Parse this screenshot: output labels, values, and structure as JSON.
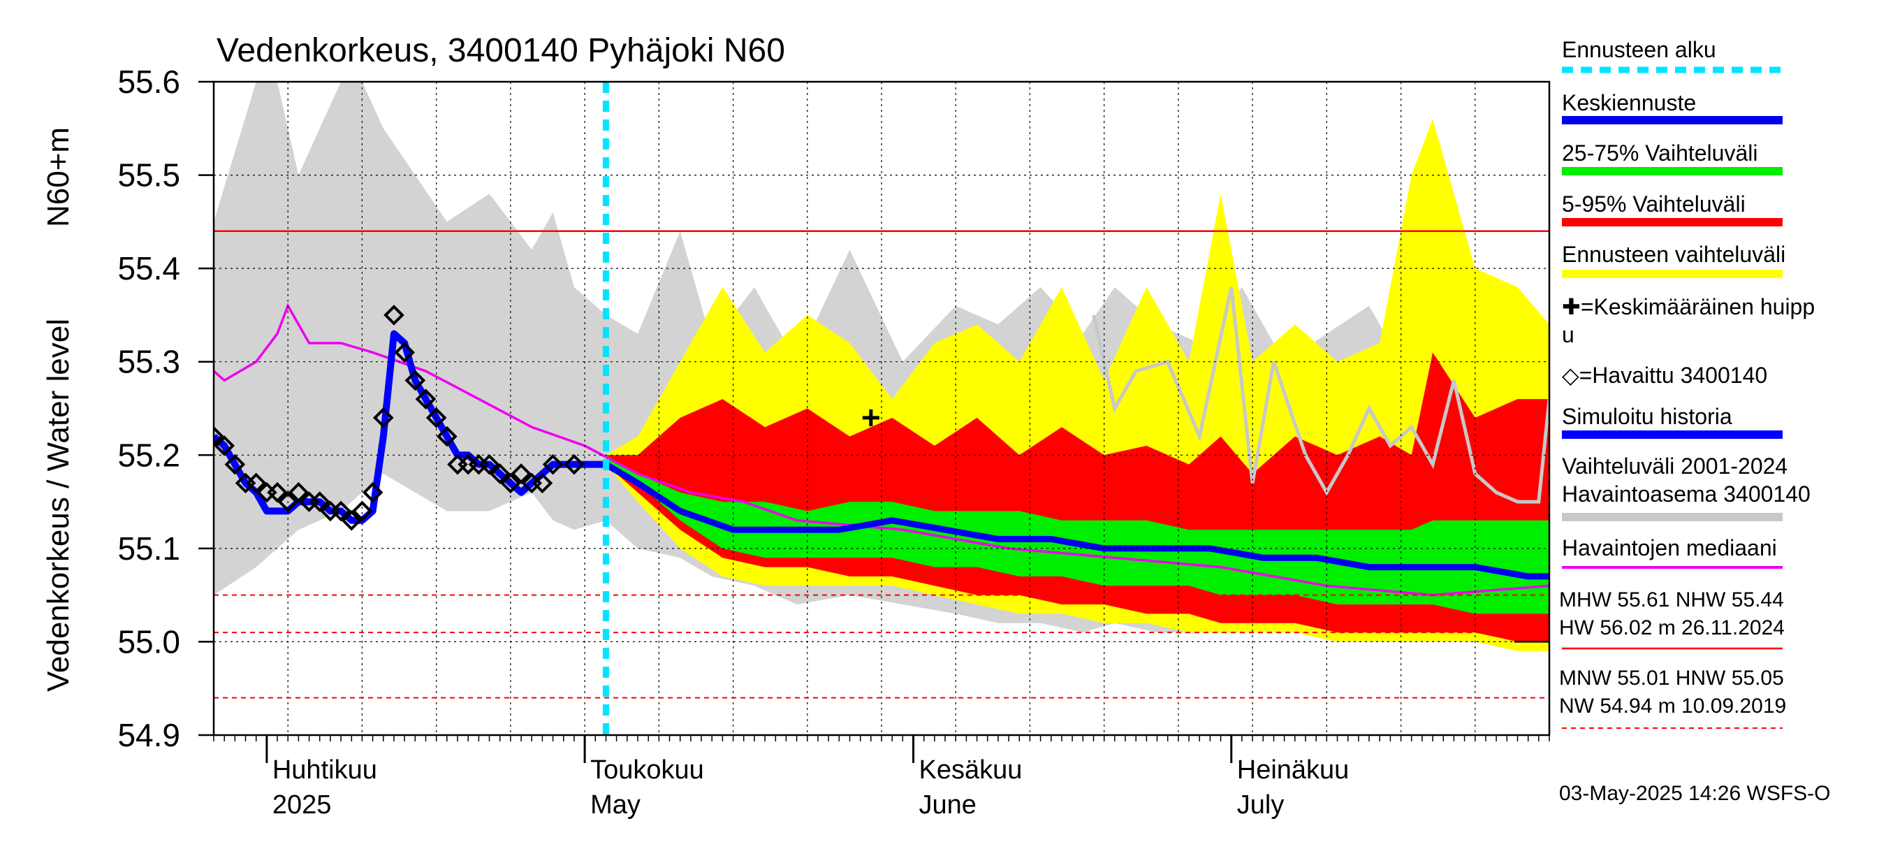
{
  "chart_data": {
    "type": "area",
    "title": "Vedenkorkeus, 3400140 Pyhäjoki N60",
    "ylabel": "Vedenkorkeus / Water level",
    "yunit": "N60+m",
    "ylim": [
      54.9,
      55.6
    ],
    "yticks": [
      54.9,
      55.0,
      55.1,
      55.2,
      55.3,
      55.4,
      55.5,
      55.6
    ],
    "ytick_labels": [
      "54.9",
      "55.0",
      "55.1",
      "55.2",
      "55.3",
      "55.4",
      "55.5",
      "55.6"
    ],
    "xlim": [
      "2025-03-27",
      "2025-07-31"
    ],
    "month_labels": [
      {
        "date": "2025-04-01",
        "fi": "Huhtikuu",
        "en": "2025"
      },
      {
        "date": "2025-05-01",
        "fi": "Toukokuu",
        "en": "May"
      },
      {
        "date": "2025-06-01",
        "fi": "Kesäkuu",
        "en": "June"
      },
      {
        "date": "2025-07-01",
        "fi": "Heinäkuu",
        "en": "July"
      }
    ],
    "grid": true,
    "forecast_start": "2025-05-03",
    "colors": {
      "forecast_start": "#00e5ff",
      "mean_forecast": "#0000ee",
      "band_25_75": "#00ee00",
      "band_5_95": "#ff0000",
      "band_forecast": "#ffff00",
      "history_band": "#d3d3d3",
      "station_band": "#c8c8c8",
      "median": "#ee00ee",
      "simulated": "#0000ff",
      "ref_lines": "#ff0000"
    },
    "reference_lines": {
      "NHW": 55.44,
      "HNW": 55.05,
      "MNW": 55.01,
      "NW": 54.94
    },
    "mean_peak": {
      "x": "2025-05-28",
      "y": 55.24
    },
    "observed": {
      "x": [
        "2025-03-27",
        "2025-03-28",
        "2025-03-29",
        "2025-03-30",
        "2025-03-31",
        "2025-04-01",
        "2025-04-02",
        "2025-04-03",
        "2025-04-04",
        "2025-04-05",
        "2025-04-06",
        "2025-04-07",
        "2025-04-08",
        "2025-04-09",
        "2025-04-10",
        "2025-04-11",
        "2025-04-12",
        "2025-04-13",
        "2025-04-14",
        "2025-04-15",
        "2025-04-16",
        "2025-04-17",
        "2025-04-18",
        "2025-04-19",
        "2025-04-20",
        "2025-04-21",
        "2025-04-22",
        "2025-04-23",
        "2025-04-24",
        "2025-04-25",
        "2025-04-26",
        "2025-04-27",
        "2025-04-28",
        "2025-04-30"
      ],
      "y": [
        55.22,
        55.21,
        55.19,
        55.17,
        55.17,
        55.16,
        55.16,
        55.15,
        55.16,
        55.15,
        55.15,
        55.14,
        55.14,
        55.13,
        55.14,
        55.16,
        55.24,
        55.35,
        55.31,
        55.28,
        55.26,
        55.24,
        55.22,
        55.19,
        55.19,
        55.19,
        55.19,
        55.18,
        55.17,
        55.18,
        55.17,
        55.17,
        55.19,
        55.19
      ]
    },
    "simulated": {
      "x": [
        "2025-03-27",
        "2025-03-28",
        "2025-03-29",
        "2025-03-30",
        "2025-03-31",
        "2025-04-01",
        "2025-04-02",
        "2025-04-03",
        "2025-04-04",
        "2025-04-05",
        "2025-04-06",
        "2025-04-07",
        "2025-04-08",
        "2025-04-09",
        "2025-04-10",
        "2025-04-11",
        "2025-04-12",
        "2025-04-13",
        "2025-04-14",
        "2025-04-15",
        "2025-04-16",
        "2025-04-17",
        "2025-04-18",
        "2025-04-19",
        "2025-04-20",
        "2025-04-21",
        "2025-04-22",
        "2025-04-23",
        "2025-04-24",
        "2025-04-25",
        "2025-04-26",
        "2025-04-27",
        "2025-04-28",
        "2025-04-29",
        "2025-04-30",
        "2025-05-01",
        "2025-05-02",
        "2025-05-03"
      ],
      "y": [
        55.22,
        55.21,
        55.19,
        55.17,
        55.16,
        55.14,
        55.14,
        55.14,
        55.15,
        55.15,
        55.15,
        55.14,
        55.14,
        55.13,
        55.13,
        55.14,
        55.22,
        55.33,
        55.32,
        55.28,
        55.26,
        55.24,
        55.22,
        55.2,
        55.2,
        55.19,
        55.19,
        55.18,
        55.17,
        55.16,
        55.17,
        55.18,
        55.19,
        55.19,
        55.19,
        55.19,
        55.19,
        55.19
      ]
    },
    "series": [
      {
        "name": "Keskiennuste",
        "x": [
          "2025-05-03",
          "2025-05-06",
          "2025-05-10",
          "2025-05-15",
          "2025-05-20",
          "2025-05-25",
          "2025-05-30",
          "2025-06-04",
          "2025-06-09",
          "2025-06-14",
          "2025-06-19",
          "2025-06-24",
          "2025-06-29",
          "2025-07-04",
          "2025-07-09",
          "2025-07-14",
          "2025-07-19",
          "2025-07-24",
          "2025-07-29",
          "2025-07-31"
        ],
        "y": [
          55.19,
          55.17,
          55.14,
          55.12,
          55.12,
          55.12,
          55.13,
          55.12,
          55.11,
          55.11,
          55.1,
          55.1,
          55.1,
          55.09,
          55.09,
          55.08,
          55.08,
          55.08,
          55.07,
          55.07
        ]
      },
      {
        "name": "Havaintojen mediaani",
        "x": [
          "2025-03-27",
          "2025-03-28",
          "2025-03-31",
          "2025-04-02",
          "2025-04-03",
          "2025-04-05",
          "2025-04-08",
          "2025-04-11",
          "2025-04-16",
          "2025-04-21",
          "2025-04-26",
          "2025-05-01",
          "2025-05-06",
          "2025-05-11",
          "2025-05-16",
          "2025-05-21",
          "2025-05-31",
          "2025-06-10",
          "2025-06-20",
          "2025-06-30",
          "2025-07-10",
          "2025-07-20",
          "2025-07-31"
        ],
        "y": [
          55.29,
          55.28,
          55.3,
          55.33,
          55.36,
          55.32,
          55.32,
          55.31,
          55.29,
          55.26,
          55.23,
          55.21,
          55.18,
          55.16,
          55.15,
          55.13,
          55.12,
          55.1,
          55.09,
          55.08,
          55.06,
          55.05,
          55.06
        ]
      }
    ],
    "bands": [
      {
        "name": "Vaihteluväli 2001-2024",
        "x": [
          "2025-03-27",
          "2025-03-31",
          "2025-04-02",
          "2025-04-04",
          "2025-04-06",
          "2025-04-08",
          "2025-04-10",
          "2025-04-12",
          "2025-04-15",
          "2025-04-18",
          "2025-04-22",
          "2025-04-26",
          "2025-04-28",
          "2025-04-30",
          "2025-05-03",
          "2025-05-06",
          "2025-05-10",
          "2025-05-13",
          "2025-05-17",
          "2025-05-21",
          "2025-05-26",
          "2025-05-31",
          "2025-06-05",
          "2025-06-09",
          "2025-06-13",
          "2025-06-17",
          "2025-06-20",
          "2025-06-24",
          "2025-06-28",
          "2025-07-02",
          "2025-07-06",
          "2025-07-10",
          "2025-07-14",
          "2025-07-18",
          "2025-07-22",
          "2025-07-26",
          "2025-07-31"
        ],
        "low": [
          55.05,
          55.08,
          55.1,
          55.12,
          55.13,
          55.14,
          55.16,
          55.18,
          55.16,
          55.14,
          55.14,
          55.16,
          55.13,
          55.12,
          55.13,
          55.1,
          55.09,
          55.07,
          55.06,
          55.04,
          55.05,
          55.04,
          55.03,
          55.02,
          55.02,
          55.01,
          55.02,
          55.01,
          55.01,
          55.02,
          55.01,
          55.01,
          55.01,
          55.01,
          55.0,
          55.0,
          55.0
        ],
        "high": [
          55.45,
          55.6,
          55.6,
          55.5,
          55.55,
          55.6,
          55.6,
          55.55,
          55.5,
          55.45,
          55.48,
          55.42,
          55.46,
          55.38,
          55.35,
          55.33,
          55.44,
          55.32,
          55.38,
          55.3,
          55.42,
          55.3,
          55.36,
          55.34,
          55.38,
          55.33,
          55.38,
          55.34,
          55.32,
          55.38,
          55.3,
          55.33,
          55.36,
          55.28,
          55.3,
          55.27,
          55.26
        ]
      },
      {
        "name": "Ennusteen vaihteluväli",
        "x": [
          "2025-05-03",
          "2025-05-06",
          "2025-05-10",
          "2025-05-14",
          "2025-05-18",
          "2025-05-22",
          "2025-05-26",
          "2025-05-30",
          "2025-06-03",
          "2025-06-07",
          "2025-06-11",
          "2025-06-15",
          "2025-06-19",
          "2025-06-23",
          "2025-06-27",
          "2025-06-30",
          "2025-07-03",
          "2025-07-07",
          "2025-07-11",
          "2025-07-15",
          "2025-07-18",
          "2025-07-20",
          "2025-07-24",
          "2025-07-28",
          "2025-07-31"
        ],
        "low": [
          55.19,
          55.15,
          55.1,
          55.07,
          55.06,
          55.06,
          55.06,
          55.06,
          55.05,
          55.04,
          55.03,
          55.03,
          55.02,
          55.02,
          55.01,
          55.01,
          55.01,
          55.01,
          55.0,
          55.0,
          55.0,
          55.0,
          55.0,
          54.99,
          54.99
        ],
        "high": [
          55.2,
          55.22,
          55.3,
          55.38,
          55.31,
          55.35,
          55.32,
          55.26,
          55.32,
          55.34,
          55.3,
          55.38,
          55.28,
          55.38,
          55.3,
          55.48,
          55.3,
          55.34,
          55.3,
          55.32,
          55.5,
          55.56,
          55.4,
          55.38,
          55.34
        ]
      },
      {
        "name": "5-95% Vaihteluväli",
        "x": [
          "2025-05-03",
          "2025-05-06",
          "2025-05-10",
          "2025-05-14",
          "2025-05-18",
          "2025-05-22",
          "2025-05-26",
          "2025-05-30",
          "2025-06-03",
          "2025-06-07",
          "2025-06-11",
          "2025-06-15",
          "2025-06-19",
          "2025-06-23",
          "2025-06-27",
          "2025-06-30",
          "2025-07-03",
          "2025-07-07",
          "2025-07-11",
          "2025-07-15",
          "2025-07-18",
          "2025-07-20",
          "2025-07-24",
          "2025-07-28",
          "2025-07-31"
        ],
        "low": [
          55.19,
          55.16,
          55.12,
          55.09,
          55.08,
          55.08,
          55.07,
          55.07,
          55.06,
          55.05,
          55.05,
          55.04,
          55.04,
          55.03,
          55.03,
          55.02,
          55.02,
          55.02,
          55.01,
          55.01,
          55.01,
          55.01,
          55.01,
          55.0,
          55.0
        ],
        "high": [
          55.2,
          55.2,
          55.24,
          55.26,
          55.23,
          55.25,
          55.22,
          55.24,
          55.21,
          55.24,
          55.2,
          55.23,
          55.2,
          55.21,
          55.19,
          55.22,
          55.18,
          55.22,
          55.2,
          55.22,
          55.2,
          55.31,
          55.24,
          55.26,
          55.26
        ]
      },
      {
        "name": "25-75% Vaihteluväli",
        "x": [
          "2025-05-03",
          "2025-05-06",
          "2025-05-10",
          "2025-05-14",
          "2025-05-18",
          "2025-05-22",
          "2025-05-26",
          "2025-05-30",
          "2025-06-03",
          "2025-06-07",
          "2025-06-11",
          "2025-06-15",
          "2025-06-19",
          "2025-06-23",
          "2025-06-27",
          "2025-06-30",
          "2025-07-03",
          "2025-07-07",
          "2025-07-11",
          "2025-07-15",
          "2025-07-18",
          "2025-07-20",
          "2025-07-24",
          "2025-07-28",
          "2025-07-31"
        ],
        "low": [
          55.19,
          55.17,
          55.13,
          55.1,
          55.09,
          55.09,
          55.09,
          55.09,
          55.08,
          55.08,
          55.07,
          55.07,
          55.06,
          55.06,
          55.06,
          55.05,
          55.05,
          55.05,
          55.04,
          55.04,
          55.04,
          55.04,
          55.03,
          55.03,
          55.03
        ],
        "high": [
          55.2,
          55.18,
          55.16,
          55.15,
          55.15,
          55.14,
          55.15,
          55.15,
          55.14,
          55.14,
          55.14,
          55.13,
          55.13,
          55.13,
          55.12,
          55.12,
          55.12,
          55.12,
          55.12,
          55.12,
          55.12,
          55.13,
          55.13,
          55.13,
          55.13
        ]
      }
    ],
    "station_line": {
      "name": "Havaintoasema 3400140",
      "x": [
        "2025-06-18",
        "2025-06-20",
        "2025-06-22",
        "2025-06-25",
        "2025-06-28",
        "2025-07-01",
        "2025-07-03",
        "2025-07-05",
        "2025-07-08",
        "2025-07-10",
        "2025-07-12",
        "2025-07-14",
        "2025-07-16",
        "2025-07-18",
        "2025-07-20",
        "2025-07-22",
        "2025-07-24",
        "2025-07-26",
        "2025-07-28",
        "2025-07-30",
        "2025-07-31"
      ],
      "y": [
        55.35,
        55.25,
        55.29,
        55.3,
        55.22,
        55.38,
        55.17,
        55.3,
        55.2,
        55.16,
        55.2,
        55.25,
        55.21,
        55.23,
        55.19,
        55.28,
        55.18,
        55.16,
        55.15,
        55.15,
        55.26
      ]
    },
    "legend": [
      {
        "label": "Ennusteen alku",
        "kind": "dash",
        "color": "#00e5ff"
      },
      {
        "label": "Keskiennuste",
        "kind": "line",
        "color": "#0000ee"
      },
      {
        "label": "25-75% Vaihteluväli",
        "kind": "line",
        "color": "#00ee00"
      },
      {
        "label": "5-95% Vaihteluväli",
        "kind": "line",
        "color": "#ff0000"
      },
      {
        "label": "Ennusteen vaihteluväli",
        "kind": "line",
        "color": "#ffff00"
      },
      {
        "label": "✚=Keskimääräinen huippu",
        "kind": "text"
      },
      {
        "label": "◇=Havaittu 3400140",
        "kind": "text"
      },
      {
        "label": "Simuloitu historia",
        "kind": "line",
        "color": "#0000ff"
      },
      {
        "label": "Vaihteluväli 2001-2024\n Havaintoasema 3400140",
        "kind": "line",
        "color": "#c8c8c8"
      },
      {
        "label": "Havaintojen mediaani",
        "kind": "line",
        "color": "#ee00ee"
      }
    ],
    "stats": {
      "line1": "MHW  55.61 NHW  55.44",
      "line2": "HW  56.02 m 26.11.2024",
      "line3": "MNW  55.01 HNW  55.05",
      "line4": "NW  54.94 m 10.09.2019"
    },
    "footer": "03-May-2025 14:26 WSFS-O"
  }
}
